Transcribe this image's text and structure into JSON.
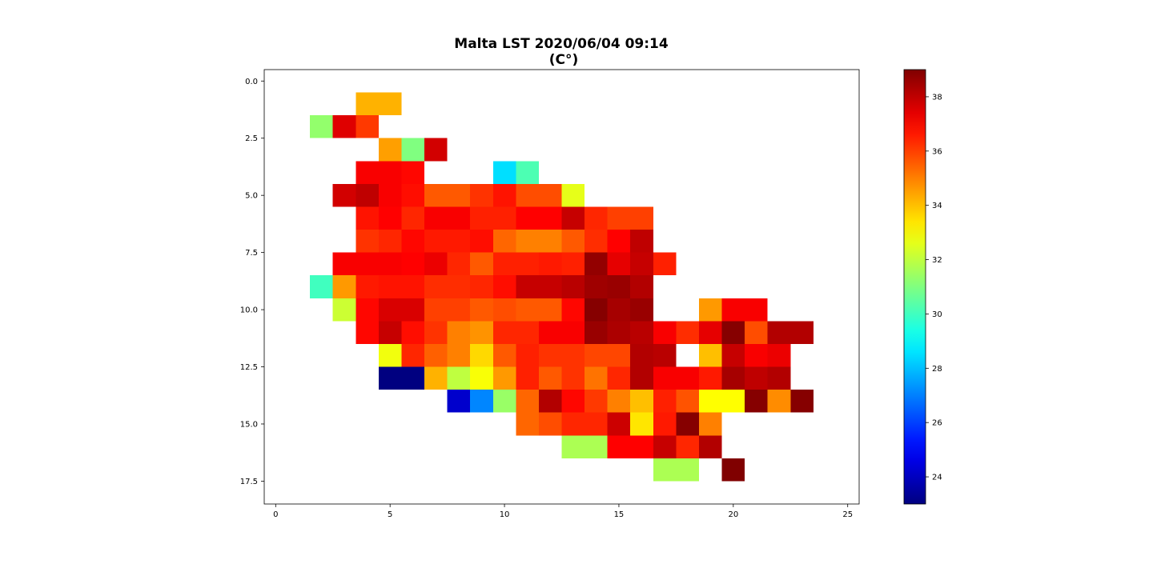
{
  "chart_data": {
    "type": "heatmap",
    "title": "Malta LST 2020/06/04 09:14",
    "subtitle": "(C°)",
    "xlabel": "",
    "ylabel": "",
    "x_ticks": [
      "0",
      "5",
      "10",
      "15",
      "20",
      "25"
    ],
    "y_ticks": [
      "0.0",
      "2.5",
      "5.0",
      "7.5",
      "10.0",
      "12.5",
      "15.0",
      "17.5"
    ],
    "xlim": [
      -0.5,
      25.5
    ],
    "ylim": [
      18.5,
      -0.5
    ],
    "colormap": "jet",
    "color_range": [
      23,
      39
    ],
    "colorbar_ticks": [
      "24",
      "26",
      "28",
      "30",
      "32",
      "34",
      "36",
      "38"
    ],
    "grid": false,
    "cells": [
      [
        4,
        1,
        34.2
      ],
      [
        5,
        1,
        34.2
      ],
      [
        2,
        2,
        31.3
      ],
      [
        3,
        2,
        37.5
      ],
      [
        4,
        2,
        36.1
      ],
      [
        5,
        3,
        34.5
      ],
      [
        6,
        3,
        31.0
      ],
      [
        7,
        3,
        37.7
      ],
      [
        4,
        4,
        37.1
      ],
      [
        5,
        4,
        37.1
      ],
      [
        6,
        4,
        36.9
      ],
      [
        10,
        4,
        28.5
      ],
      [
        11,
        4,
        30.2
      ],
      [
        3,
        5,
        37.7
      ],
      [
        4,
        5,
        38.0
      ],
      [
        5,
        5,
        37.1
      ],
      [
        6,
        5,
        36.8
      ],
      [
        7,
        5,
        35.6
      ],
      [
        8,
        5,
        35.6
      ],
      [
        9,
        5,
        36.2
      ],
      [
        10,
        5,
        36.7
      ],
      [
        11,
        5,
        35.8
      ],
      [
        12,
        5,
        35.8
      ],
      [
        13,
        5,
        32.6
      ],
      [
        4,
        6,
        36.7
      ],
      [
        5,
        6,
        37.0
      ],
      [
        6,
        6,
        36.4
      ],
      [
        7,
        6,
        37.1
      ],
      [
        8,
        6,
        37.1
      ],
      [
        9,
        6,
        36.5
      ],
      [
        10,
        6,
        36.5
      ],
      [
        11,
        6,
        37.0
      ],
      [
        12,
        6,
        37.0
      ],
      [
        13,
        6,
        37.9
      ],
      [
        14,
        6,
        36.4
      ],
      [
        15,
        6,
        36.0
      ],
      [
        16,
        6,
        36.0
      ],
      [
        4,
        7,
        36.2
      ],
      [
        5,
        7,
        36.4
      ],
      [
        6,
        7,
        36.9
      ],
      [
        7,
        7,
        36.6
      ],
      [
        8,
        7,
        36.6
      ],
      [
        9,
        7,
        36.8
      ],
      [
        10,
        7,
        35.4
      ],
      [
        11,
        7,
        35.0
      ],
      [
        12,
        7,
        35.0
      ],
      [
        13,
        7,
        35.6
      ],
      [
        14,
        7,
        36.3
      ],
      [
        15,
        7,
        37.0
      ],
      [
        16,
        7,
        38.0
      ],
      [
        3,
        8,
        37.1
      ],
      [
        4,
        8,
        37.1
      ],
      [
        5,
        8,
        37.1
      ],
      [
        6,
        8,
        37.0
      ],
      [
        7,
        8,
        37.3
      ],
      [
        8,
        8,
        36.4
      ],
      [
        9,
        8,
        35.6
      ],
      [
        10,
        8,
        36.5
      ],
      [
        11,
        8,
        36.5
      ],
      [
        12,
        8,
        36.6
      ],
      [
        13,
        8,
        36.5
      ],
      [
        14,
        8,
        38.7
      ],
      [
        15,
        8,
        37.4
      ],
      [
        16,
        8,
        37.9
      ],
      [
        17,
        8,
        36.5
      ],
      [
        2,
        9,
        30.0
      ],
      [
        3,
        9,
        34.6
      ],
      [
        4,
        9,
        36.6
      ],
      [
        5,
        9,
        36.7
      ],
      [
        6,
        9,
        36.7
      ],
      [
        7,
        9,
        36.3
      ],
      [
        8,
        9,
        36.3
      ],
      [
        9,
        9,
        36.4
      ],
      [
        10,
        9,
        36.8
      ],
      [
        11,
        9,
        37.9
      ],
      [
        12,
        9,
        37.9
      ],
      [
        13,
        9,
        38.1
      ],
      [
        14,
        9,
        38.5
      ],
      [
        15,
        9,
        38.6
      ],
      [
        16,
        9,
        38.2
      ],
      [
        3,
        10,
        32.2
      ],
      [
        4,
        10,
        36.9
      ],
      [
        5,
        10,
        37.6
      ],
      [
        6,
        10,
        37.6
      ],
      [
        7,
        10,
        36.0
      ],
      [
        8,
        10,
        36.0
      ],
      [
        9,
        10,
        35.6
      ],
      [
        10,
        10,
        35.8
      ],
      [
        11,
        10,
        35.6
      ],
      [
        12,
        10,
        35.6
      ],
      [
        13,
        10,
        36.9
      ],
      [
        14,
        10,
        38.9
      ],
      [
        15,
        10,
        38.4
      ],
      [
        16,
        10,
        38.6
      ],
      [
        19,
        10,
        34.6
      ],
      [
        20,
        10,
        37.1
      ],
      [
        21,
        10,
        37.1
      ],
      [
        4,
        11,
        36.9
      ],
      [
        5,
        11,
        37.9
      ],
      [
        6,
        11,
        36.8
      ],
      [
        7,
        11,
        36.2
      ],
      [
        8,
        11,
        35.0
      ],
      [
        9,
        11,
        34.7
      ],
      [
        10,
        11,
        36.4
      ],
      [
        11,
        11,
        36.4
      ],
      [
        12,
        11,
        37.1
      ],
      [
        13,
        11,
        37.1
      ],
      [
        14,
        11,
        38.6
      ],
      [
        15,
        11,
        38.3
      ],
      [
        16,
        11,
        38.1
      ],
      [
        17,
        11,
        37.1
      ],
      [
        18,
        11,
        36.3
      ],
      [
        19,
        11,
        37.4
      ],
      [
        20,
        11,
        38.9
      ],
      [
        21,
        11,
        35.8
      ],
      [
        22,
        11,
        38.2
      ],
      [
        23,
        11,
        38.2
      ],
      [
        5,
        12,
        32.8
      ],
      [
        6,
        12,
        36.4
      ],
      [
        7,
        12,
        35.5
      ],
      [
        8,
        12,
        35.0
      ],
      [
        9,
        12,
        33.6
      ],
      [
        10,
        12,
        35.6
      ],
      [
        11,
        12,
        36.5
      ],
      [
        12,
        12,
        36.2
      ],
      [
        13,
        12,
        36.2
      ],
      [
        14,
        12,
        35.9
      ],
      [
        15,
        12,
        35.9
      ],
      [
        16,
        12,
        38.2
      ],
      [
        17,
        12,
        38.1
      ],
      [
        19,
        12,
        34.0
      ],
      [
        20,
        12,
        37.9
      ],
      [
        21,
        12,
        37.1
      ],
      [
        22,
        12,
        37.3
      ],
      [
        5,
        13,
        23.0
      ],
      [
        6,
        13,
        23.0
      ],
      [
        7,
        13,
        34.2
      ],
      [
        8,
        13,
        32.0
      ],
      [
        9,
        13,
        32.9
      ],
      [
        10,
        13,
        34.6
      ],
      [
        11,
        13,
        36.5
      ],
      [
        12,
        13,
        35.6
      ],
      [
        13,
        13,
        36.2
      ],
      [
        14,
        13,
        35.2
      ],
      [
        15,
        13,
        36.4
      ],
      [
        16,
        13,
        38.2
      ],
      [
        17,
        13,
        37.1
      ],
      [
        18,
        13,
        37.1
      ],
      [
        19,
        13,
        36.6
      ],
      [
        20,
        13,
        38.4
      ],
      [
        21,
        13,
        38.0
      ],
      [
        22,
        13,
        38.2
      ],
      [
        8,
        14,
        24.2
      ],
      [
        9,
        14,
        27.1
      ],
      [
        10,
        14,
        31.4
      ],
      [
        11,
        14,
        35.4
      ],
      [
        12,
        14,
        38.2
      ],
      [
        13,
        14,
        36.9
      ],
      [
        14,
        14,
        36.1
      ],
      [
        15,
        14,
        35.0
      ],
      [
        16,
        14,
        34.0
      ],
      [
        17,
        14,
        36.5
      ],
      [
        18,
        14,
        35.7
      ],
      [
        19,
        14,
        33.0
      ],
      [
        20,
        14,
        33.0
      ],
      [
        21,
        14,
        38.9
      ],
      [
        22,
        14,
        34.8
      ],
      [
        23,
        14,
        38.9
      ],
      [
        11,
        15,
        35.4
      ],
      [
        12,
        15,
        35.8
      ],
      [
        13,
        15,
        36.4
      ],
      [
        14,
        15,
        36.4
      ],
      [
        15,
        15,
        37.8
      ],
      [
        16,
        15,
        33.4
      ],
      [
        17,
        15,
        36.6
      ],
      [
        18,
        15,
        38.9
      ],
      [
        19,
        15,
        35.0
      ],
      [
        13,
        16,
        31.7
      ],
      [
        14,
        16,
        31.7
      ],
      [
        15,
        16,
        37.0
      ],
      [
        16,
        16,
        37.0
      ],
      [
        17,
        16,
        37.9
      ],
      [
        18,
        16,
        36.4
      ],
      [
        19,
        16,
        38.2
      ],
      [
        17,
        17,
        31.7
      ],
      [
        18,
        17,
        31.7
      ],
      [
        20,
        17,
        39.0
      ]
    ]
  }
}
